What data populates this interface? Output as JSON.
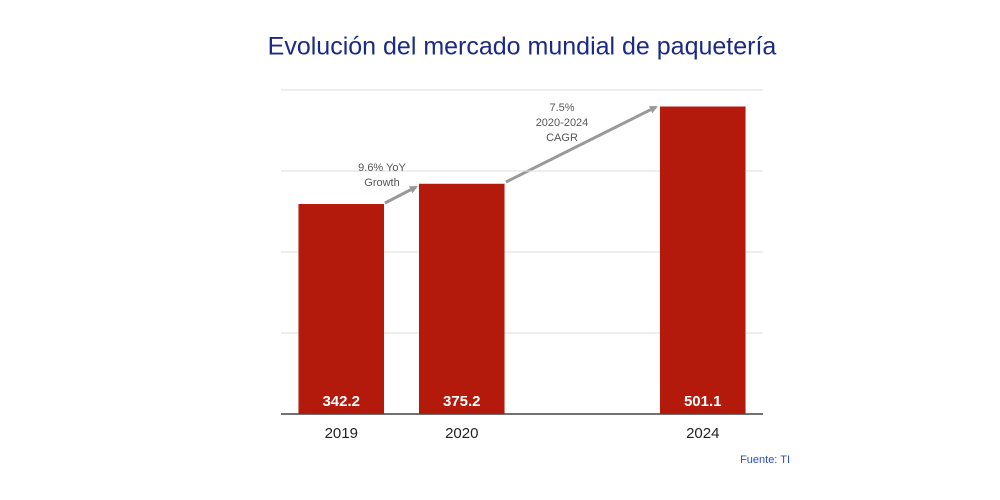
{
  "chart_data": {
    "type": "bar",
    "title": "Evolución del mercado mundial de paquetería",
    "categories": [
      "2019",
      "2020",
      null,
      "2024"
    ],
    "values": [
      342.2,
      375.2,
      null,
      501.1
    ],
    "color": "#b31a0b",
    "ylim": [
      0,
      528
    ],
    "yticks": [
      0,
      132,
      264,
      396,
      528
    ],
    "grid": true,
    "annotations": [
      {
        "lines": [
          "9.6% YoY",
          "Growth"
        ]
      },
      {
        "lines": [
          "7.5%",
          "2020-2024",
          "CAGR"
        ]
      }
    ],
    "source": "Fuente: TI"
  }
}
